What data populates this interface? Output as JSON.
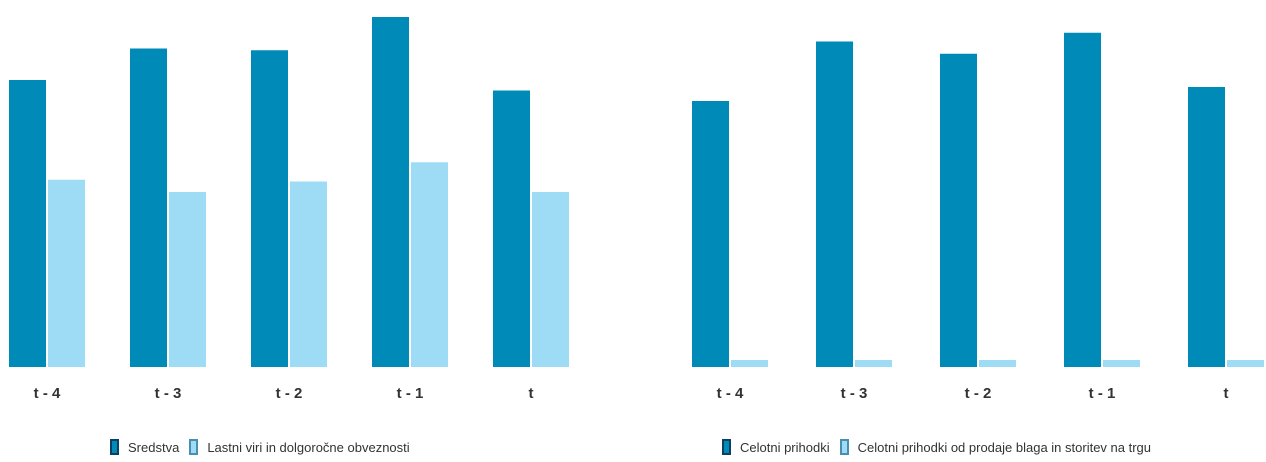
{
  "colors": {
    "series1": "#008ab8",
    "series1_edge": "#0b3f66",
    "series2": "#9edcf5",
    "series2_edge": "#4a8fb0"
  },
  "chart_data": [
    {
      "type": "bar",
      "categories": [
        "t - 4",
        "t - 3",
        "t - 2",
        "t - 1",
        "t"
      ],
      "series": [
        {
          "name": "Sredstva",
          "values": [
            82,
            91,
            90.5,
            100,
            79
          ]
        },
        {
          "name": "Lastni viri in dolgoročne obveznosti",
          "values": [
            53.5,
            50,
            53,
            58.5,
            50
          ]
        }
      ],
      "ylim": [
        0,
        100
      ],
      "grid": false,
      "legend": "bottom"
    },
    {
      "type": "bar",
      "categories": [
        "t - 4",
        "t - 3",
        "t - 2",
        "t - 1",
        "t"
      ],
      "series": [
        {
          "name": "Celotni prihodki",
          "values": [
            76,
            93,
            89.5,
            95.5,
            80
          ]
        },
        {
          "name": "Celotni prihodki od prodaje blaga in storitev na trgu",
          "values": [
            2,
            2,
            2,
            2,
            2
          ]
        }
      ],
      "ylim": [
        0,
        100
      ],
      "grid": false,
      "legend": "bottom"
    }
  ]
}
